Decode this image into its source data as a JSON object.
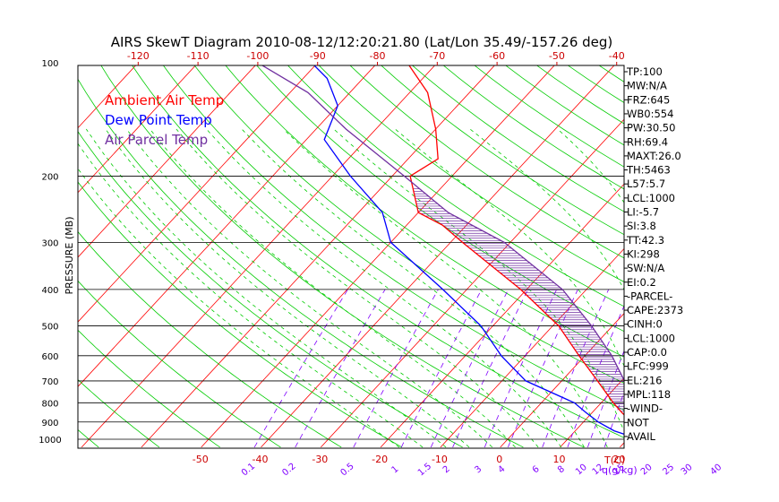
{
  "chart_data": {
    "type": "skewt",
    "title": "AIRS SkewT Diagram 2010-08-12/12:20:21.80 (Lat/Lon 35.49/-157.26 deg)",
    "ylabel": "PRESSURE (MB)",
    "xlabel_bottom": "T(C)",
    "mixing_ratio_unit": "q(g/kg)",
    "y_scale": "log",
    "ylim": [
      1000,
      100
    ],
    "pressure_ticks": [
      100,
      200,
      300,
      400,
      500,
      600,
      700,
      800,
      900,
      1000
    ],
    "isobars": [
      200,
      300,
      400,
      500,
      600,
      700,
      800,
      900,
      1000
    ],
    "top_temp_ticks": [
      -120,
      -110,
      -100,
      -90,
      -80,
      -70,
      -60,
      -50,
      -40
    ],
    "bottom_temp_ticks": [
      -50,
      -40,
      -30,
      -20,
      -10,
      0,
      10,
      20
    ],
    "mixing_ratio_labels": [
      "0.1",
      "0.2",
      "0.5",
      "1",
      "1.5",
      "2",
      "3",
      "4",
      "6",
      "8",
      "10",
      "12",
      "15",
      "20",
      "25",
      "30",
      "40"
    ],
    "legend": [
      {
        "label": "Ambient Air Temp",
        "color": "#ff0000"
      },
      {
        "label": "Dew Point Temp",
        "color": "#0000ff"
      },
      {
        "label": "Air Parcel Temp",
        "color": "#7030a0"
      }
    ],
    "series": [
      {
        "name": "Ambient Air Temp",
        "color": "#ff0000",
        "points": [
          [
            1000,
            23
          ],
          [
            950,
            21
          ],
          [
            900,
            18
          ],
          [
            850,
            15
          ],
          [
            800,
            12
          ],
          [
            700,
            6
          ],
          [
            600,
            -1
          ],
          [
            500,
            -9
          ],
          [
            400,
            -21
          ],
          [
            300,
            -38
          ],
          [
            270,
            -44
          ],
          [
            250,
            -50
          ],
          [
            200,
            -57
          ],
          [
            180,
            -55
          ],
          [
            150,
            -60
          ],
          [
            120,
            -67
          ],
          [
            100,
            -75
          ]
        ]
      },
      {
        "name": "Dew Point Temp",
        "color": "#0000ff",
        "points": [
          [
            1000,
            22
          ],
          [
            950,
            16.5
          ],
          [
            900,
            12.5
          ],
          [
            850,
            9
          ],
          [
            800,
            5.5
          ],
          [
            700,
            -6
          ],
          [
            600,
            -14
          ],
          [
            500,
            -22
          ],
          [
            400,
            -34
          ],
          [
            300,
            -50
          ],
          [
            250,
            -56
          ],
          [
            200,
            -67
          ],
          [
            160,
            -77
          ],
          [
            130,
            -80
          ],
          [
            110,
            -86
          ],
          [
            100,
            -91
          ]
        ]
      },
      {
        "name": "Air Parcel Temp",
        "color": "#7030a0",
        "points": [
          [
            1000,
            23
          ],
          [
            900,
            19.5
          ],
          [
            800,
            15.5
          ],
          [
            700,
            10.5
          ],
          [
            600,
            4.5
          ],
          [
            500,
            -3.5
          ],
          [
            400,
            -14
          ],
          [
            300,
            -31
          ],
          [
            250,
            -45
          ],
          [
            200,
            -58
          ],
          [
            150,
            -75
          ],
          [
            120,
            -87
          ],
          [
            100,
            -100
          ]
        ]
      }
    ],
    "indices": [
      "TP:100",
      "MW:N/A",
      "FRZ:645",
      "WB0:554",
      "PW:30.50",
      "RH:69.4",
      "MAXT:26.0",
      "TH:5463",
      "L57:5.7",
      "LCL:1000",
      "LI:-5.7",
      "SI:3.8",
      "TT:42.3",
      "KI:298",
      "SW:N/A",
      "EI:0.2",
      "-PARCEL-",
      "CAPE:2373",
      "CINH:0",
      "LCL:1000",
      "CAP:0.0",
      "LFC:999",
      "EL:216",
      "MPL:118",
      "-WIND-",
      "NOT",
      "AVAIL"
    ],
    "colors": {
      "isotherm": "#ff0000",
      "dry_adiabat": "#00cc00",
      "moist_adiabat": "#00cc00",
      "mixing_ratio": "#8000ff",
      "isobar": "#000000",
      "cape_hatch": "#7030a0"
    }
  }
}
